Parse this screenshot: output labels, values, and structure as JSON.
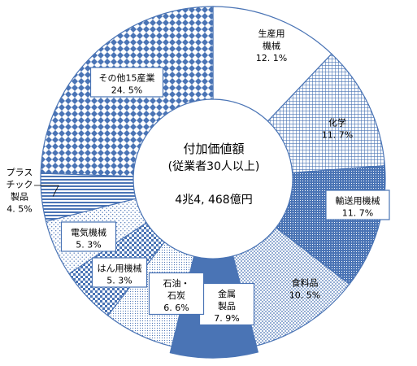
{
  "chart_data": {
    "type": "pie",
    "title": "付加価値額",
    "subtitle": "(従業者30人以上)",
    "total": "4兆4, 468億円",
    "slices": [
      {
        "label": [
          "生産用",
          "機械"
        ],
        "value_text": "12. 1%",
        "value": 12.1,
        "pattern": "white"
      },
      {
        "label": [
          "化学"
        ],
        "value_text": "11. 7%",
        "value": 11.7,
        "pattern": "grid"
      },
      {
        "label": [
          "輸送用機械"
        ],
        "value_text": "11. 7%",
        "value": 11.7,
        "pattern": "dense"
      },
      {
        "label": [
          "食料品"
        ],
        "value_text": "10. 5%",
        "value": 10.5,
        "pattern": "dots"
      },
      {
        "label": [
          "金属",
          "製品"
        ],
        "value_text": "7. 9%",
        "value": 7.9,
        "pattern": "solid"
      },
      {
        "label": [
          "石油・",
          "石炭"
        ],
        "value_text": "6. 6%",
        "value": 6.6,
        "pattern": "fine"
      },
      {
        "label": [
          "はん用機械"
        ],
        "value_text": "5. 3%",
        "value": 5.3,
        "pattern": "check"
      },
      {
        "label": [
          "電気機械"
        ],
        "value_text": "5. 3%",
        "value": 5.3,
        "pattern": "sparse"
      },
      {
        "label": [
          "プラス",
          "チック",
          "製品"
        ],
        "value_text": "4. 5%",
        "value": 4.5,
        "pattern": "hstripe"
      },
      {
        "label": [
          "その他15産業"
        ],
        "value_text": "24. 5%",
        "value": 24.5,
        "pattern": "diamond"
      }
    ]
  },
  "colors": {
    "primary": "#4a74b5",
    "background": "#ffffff"
  }
}
